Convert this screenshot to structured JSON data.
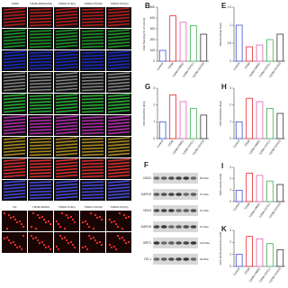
{
  "micrograph": {
    "columns": [
      "T2DM",
      "T2DM+DMSO(SS)",
      "T2DM+TCF(L)",
      "T2DM+TCF(M)",
      "T2DM+TCF(H)"
    ],
    "bottom_columns": [
      "NC",
      "T2DM+DMSO",
      "T2DM+TCF(L)",
      "T2DM+TCF(M)",
      "T2DM+TCF(H)"
    ]
  },
  "groups": [
    "Control",
    "T2DM",
    "T2DM+DMSO",
    "T2DM+TCF(L)",
    "T2DM+TCF(H)"
  ],
  "panels": [
    {
      "type": "bar",
      "letter": "B",
      "ylabel": "DHE Staining (% of control)",
      "values": [
        100,
        420,
        360,
        330,
        250
      ],
      "ylim": [
        0,
        500
      ],
      "yticks": [
        0,
        100,
        200,
        300,
        400,
        500
      ]
    },
    {
      "type": "bar",
      "letter": "E",
      "ylabel": "Mitochondrial mass",
      "values": [
        1.0,
        0.4,
        0.45,
        0.6,
        0.75
      ],
      "ylim": [
        0,
        1.5
      ],
      "yticks": [
        0,
        0.5,
        1,
        1.5
      ]
    },
    {
      "type": "bar",
      "letter": "G",
      "ylabel": "NOX4/GAPDH (fold)",
      "values": [
        1.0,
        2.6,
        2.2,
        1.8,
        1.4
      ],
      "ylim": [
        0,
        3
      ],
      "yticks": [
        0,
        1,
        2,
        3
      ]
    },
    {
      "type": "bar",
      "letter": "H",
      "ylabel": "NOX2/GAPDH (fold)",
      "values": [
        1.0,
        2.4,
        2.2,
        1.8,
        1.5
      ],
      "ylim": [
        0,
        3
      ],
      "yticks": [
        0,
        1,
        2,
        3
      ]
    },
    {
      "type": "bar",
      "letter": "I",
      "ylabel": "SOD activity (fold)",
      "values": [
        1.0,
        2.5,
        2.3,
        1.8,
        1.5
      ],
      "ylim": [
        0,
        3
      ],
      "yticks": [
        0,
        1,
        2,
        3
      ]
    },
    {
      "type": "bar",
      "letter": "K",
      "ylabel": "DCF-DA fluorescence (fold)",
      "values": [
        1.0,
        2.5,
        2.3,
        1.9,
        1.4
      ],
      "ylim": [
        0,
        3
      ],
      "yticks": [
        0,
        1,
        2,
        3
      ]
    }
  ],
  "colors": [
    "#3b4fd8",
    "#e8242c",
    "#e060b0",
    "#3fb34f",
    "#333333"
  ],
  "blot": {
    "letter": "F",
    "rows": [
      {
        "protein": "NOX2",
        "kda": "65 kDa"
      },
      {
        "protein": "GAPDH",
        "kda": "37 kDa"
      },
      {
        "protein": "NOX4",
        "kda": "67 kDa"
      },
      {
        "protein": "GAPDH",
        "kda": "37 kDa"
      },
      {
        "protein": "SIRT1",
        "kda": "110 kDa"
      },
      {
        "protein": "HO-1",
        "kda": "32 kDa"
      }
    ]
  }
}
